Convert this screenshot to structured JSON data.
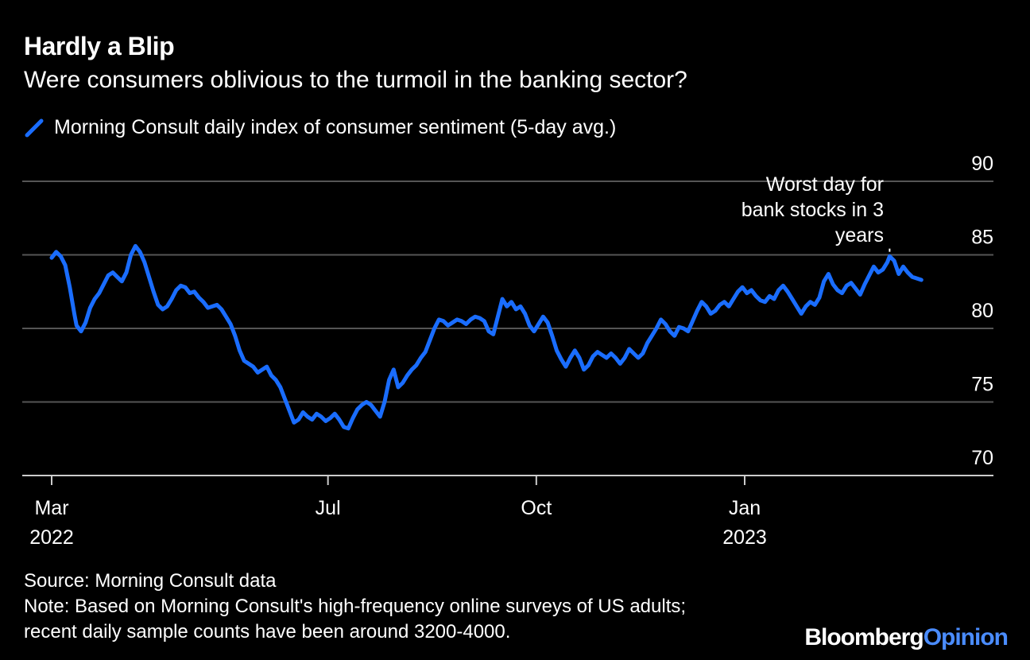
{
  "header": {
    "title": "Hardly a Blip",
    "subtitle": "Were consumers oblivious to the turmoil in the banking sector?"
  },
  "colors": {
    "line": "#1a6dff",
    "grid": "#555555",
    "text": "#ffffff",
    "background": "#000000",
    "brand_accent": "#4a8cff"
  },
  "chart_data": {
    "type": "line",
    "title": "Hardly a Blip",
    "subtitle": "Were consumers oblivious to the turmoil in the banking sector?",
    "legend": [
      "Morning Consult daily index of consumer sentiment (5-day avg.)"
    ],
    "legend_position": "top-left",
    "ylim": [
      70,
      90
    ],
    "yticks": [
      90,
      85,
      80,
      75,
      70
    ],
    "y_axis_side": "right",
    "grid": true,
    "x_tick_labels": [
      {
        "label": "Mar",
        "sub": "2022",
        "day": 0
      },
      {
        "label": "Jul",
        "sub": "",
        "day": 122
      },
      {
        "label": "Oct",
        "sub": "",
        "day": 214
      },
      {
        "label": "Jan",
        "sub": "2023",
        "day": 306
      }
    ],
    "xlim_days": [
      -12,
      415
    ],
    "series": [
      {
        "name": "Morning Consult daily index of consumer sentiment (5-day avg.)",
        "points": [
          [
            0,
            84.8
          ],
          [
            2,
            85.2
          ],
          [
            4,
            84.9
          ],
          [
            6,
            84.3
          ],
          [
            8,
            82.8
          ],
          [
            10,
            81.0
          ],
          [
            11,
            80.2
          ],
          [
            13,
            79.8
          ],
          [
            15,
            80.4
          ],
          [
            17,
            81.4
          ],
          [
            19,
            82.0
          ],
          [
            21,
            82.4
          ],
          [
            23,
            83.0
          ],
          [
            25,
            83.6
          ],
          [
            27,
            83.8
          ],
          [
            29,
            83.5
          ],
          [
            31,
            83.2
          ],
          [
            33,
            83.8
          ],
          [
            35,
            85.0
          ],
          [
            37,
            85.6
          ],
          [
            39,
            85.2
          ],
          [
            41,
            84.5
          ],
          [
            43,
            83.5
          ],
          [
            45,
            82.5
          ],
          [
            47,
            81.6
          ],
          [
            49,
            81.3
          ],
          [
            51,
            81.5
          ],
          [
            53,
            82.0
          ],
          [
            55,
            82.6
          ],
          [
            57,
            82.9
          ],
          [
            59,
            82.8
          ],
          [
            61,
            82.4
          ],
          [
            63,
            82.5
          ],
          [
            65,
            82.1
          ],
          [
            67,
            81.8
          ],
          [
            69,
            81.4
          ],
          [
            71,
            81.5
          ],
          [
            73,
            81.6
          ],
          [
            75,
            81.3
          ],
          [
            77,
            80.8
          ],
          [
            79,
            80.3
          ],
          [
            81,
            79.5
          ],
          [
            83,
            78.5
          ],
          [
            85,
            77.8
          ],
          [
            87,
            77.6
          ],
          [
            89,
            77.4
          ],
          [
            91,
            77.0
          ],
          [
            93,
            77.2
          ],
          [
            95,
            77.4
          ],
          [
            97,
            76.8
          ],
          [
            99,
            76.5
          ],
          [
            101,
            76.0
          ],
          [
            103,
            75.2
          ],
          [
            105,
            74.4
          ],
          [
            107,
            73.6
          ],
          [
            109,
            73.8
          ],
          [
            111,
            74.3
          ],
          [
            113,
            74.0
          ],
          [
            115,
            73.8
          ],
          [
            117,
            74.2
          ],
          [
            119,
            74.0
          ],
          [
            121,
            73.7
          ],
          [
            123,
            73.9
          ],
          [
            125,
            74.2
          ],
          [
            127,
            73.8
          ],
          [
            129,
            73.3
          ],
          [
            131,
            73.2
          ],
          [
            133,
            73.9
          ],
          [
            135,
            74.5
          ],
          [
            137,
            74.8
          ],
          [
            139,
            75.0
          ],
          [
            141,
            74.8
          ],
          [
            143,
            74.4
          ],
          [
            145,
            74.0
          ],
          [
            147,
            75.0
          ],
          [
            149,
            76.5
          ],
          [
            151,
            77.2
          ],
          [
            153,
            76.0
          ],
          [
            155,
            76.3
          ],
          [
            157,
            76.8
          ],
          [
            159,
            77.2
          ],
          [
            161,
            77.5
          ],
          [
            163,
            78.0
          ],
          [
            165,
            78.4
          ],
          [
            167,
            79.2
          ],
          [
            169,
            80.0
          ],
          [
            171,
            80.6
          ],
          [
            173,
            80.5
          ],
          [
            175,
            80.2
          ],
          [
            177,
            80.4
          ],
          [
            179,
            80.6
          ],
          [
            181,
            80.5
          ],
          [
            183,
            80.3
          ],
          [
            185,
            80.6
          ],
          [
            187,
            80.8
          ],
          [
            189,
            80.7
          ],
          [
            191,
            80.5
          ],
          [
            193,
            79.8
          ],
          [
            195,
            79.6
          ],
          [
            197,
            80.8
          ],
          [
            199,
            82.0
          ],
          [
            201,
            81.5
          ],
          [
            203,
            81.8
          ],
          [
            205,
            81.3
          ],
          [
            207,
            81.5
          ],
          [
            209,
            81.0
          ],
          [
            211,
            80.2
          ],
          [
            213,
            79.8
          ],
          [
            215,
            80.3
          ],
          [
            217,
            80.8
          ],
          [
            219,
            80.4
          ],
          [
            221,
            79.5
          ],
          [
            223,
            78.5
          ],
          [
            225,
            77.9
          ],
          [
            227,
            77.4
          ],
          [
            229,
            78.0
          ],
          [
            231,
            78.5
          ],
          [
            233,
            78.0
          ],
          [
            235,
            77.2
          ],
          [
            237,
            77.5
          ],
          [
            239,
            78.1
          ],
          [
            241,
            78.4
          ],
          [
            243,
            78.2
          ],
          [
            245,
            78.0
          ],
          [
            247,
            78.3
          ],
          [
            249,
            78.0
          ],
          [
            251,
            77.6
          ],
          [
            253,
            78.0
          ],
          [
            255,
            78.6
          ],
          [
            257,
            78.3
          ],
          [
            259,
            78.0
          ],
          [
            261,
            78.3
          ],
          [
            263,
            79.0
          ],
          [
            265,
            79.5
          ],
          [
            267,
            80.0
          ],
          [
            269,
            80.6
          ],
          [
            271,
            80.3
          ],
          [
            273,
            79.8
          ],
          [
            275,
            79.5
          ],
          [
            277,
            80.1
          ],
          [
            279,
            80.0
          ],
          [
            281,
            79.8
          ],
          [
            283,
            80.5
          ],
          [
            285,
            81.2
          ],
          [
            287,
            81.8
          ],
          [
            289,
            81.5
          ],
          [
            291,
            81.0
          ],
          [
            293,
            81.2
          ],
          [
            295,
            81.6
          ],
          [
            297,
            81.8
          ],
          [
            299,
            81.5
          ],
          [
            301,
            82.0
          ],
          [
            303,
            82.5
          ],
          [
            305,
            82.8
          ],
          [
            307,
            82.4
          ],
          [
            309,
            82.6
          ],
          [
            311,
            82.2
          ],
          [
            313,
            81.9
          ],
          [
            315,
            81.8
          ],
          [
            317,
            82.2
          ],
          [
            319,
            82.0
          ],
          [
            321,
            82.6
          ],
          [
            323,
            82.9
          ],
          [
            325,
            82.5
          ],
          [
            327,
            82.0
          ],
          [
            329,
            81.5
          ],
          [
            331,
            81.0
          ],
          [
            333,
            81.5
          ],
          [
            335,
            81.8
          ],
          [
            337,
            81.6
          ],
          [
            339,
            82.1
          ],
          [
            341,
            83.2
          ],
          [
            343,
            83.7
          ],
          [
            345,
            83.0
          ],
          [
            347,
            82.6
          ],
          [
            349,
            82.4
          ],
          [
            351,
            82.9
          ],
          [
            353,
            83.1
          ],
          [
            355,
            82.7
          ],
          [
            357,
            82.3
          ],
          [
            359,
            83.0
          ],
          [
            361,
            83.6
          ],
          [
            363,
            84.2
          ],
          [
            365,
            83.8
          ],
          [
            367,
            84.0
          ],
          [
            369,
            84.5
          ],
          [
            370,
            84.9
          ],
          [
            372,
            84.6
          ],
          [
            374,
            83.7
          ],
          [
            376,
            84.2
          ],
          [
            378,
            83.8
          ],
          [
            380,
            83.5
          ],
          [
            382,
            83.4
          ],
          [
            384,
            83.3
          ]
        ]
      }
    ],
    "annotations": [
      {
        "text_lines": [
          "Worst day for",
          "bank stocks in 3",
          "years"
        ],
        "day": 370,
        "value": 85.1
      }
    ]
  },
  "footer": {
    "source": "Source: Morning Consult data",
    "note_line1": "Note: Based on Morning Consult's high-frequency online surveys of US adults;",
    "note_line2": "recent daily sample counts have been around 3200-4000."
  },
  "brand": {
    "part1": "Bloomberg",
    "part2": "Opinion"
  }
}
